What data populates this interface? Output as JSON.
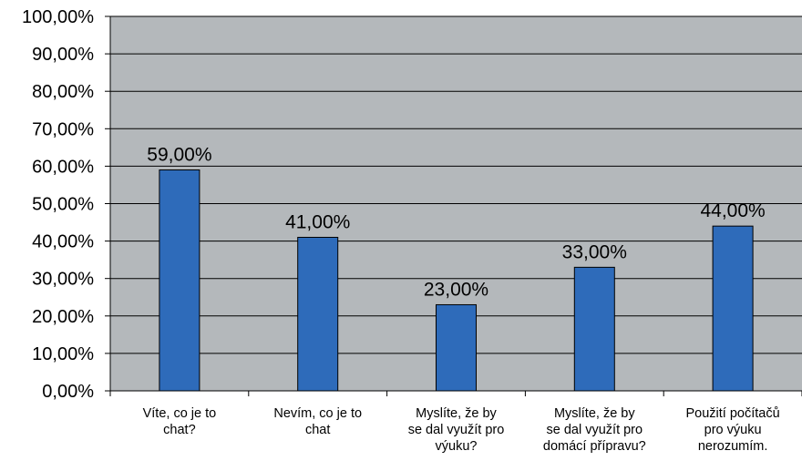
{
  "chart_data": {
    "type": "bar",
    "categories": [
      [
        "Víte, co je to",
        "chat?"
      ],
      [
        "Nevím, co je to",
        "chat"
      ],
      [
        "Myslíte, že by",
        "se dal využít pro",
        "výuku?"
      ],
      [
        "Myslíte, že by",
        "se dal využít pro",
        "domácí přípravu?"
      ],
      [
        "Použití počítačů",
        "pro výuku",
        "nerozumím."
      ]
    ],
    "values": [
      59,
      41,
      23,
      33,
      44
    ],
    "data_labels": [
      "59,00%",
      "41,00%",
      "23,00%",
      "33,00%",
      "44,00%"
    ],
    "y_tick_labels": [
      "0,00%",
      "10,00%",
      "20,00%",
      "30,00%",
      "40,00%",
      "50,00%",
      "60,00%",
      "70,00%",
      "80,00%",
      "90,00%",
      "100,00%"
    ],
    "ylim": [
      0,
      100
    ],
    "grid": true,
    "colors": {
      "plot_background": "#b4b8bb",
      "bar_fill": "#2e6bba",
      "bar_stroke": "#000000",
      "gridline": "#000000"
    }
  }
}
